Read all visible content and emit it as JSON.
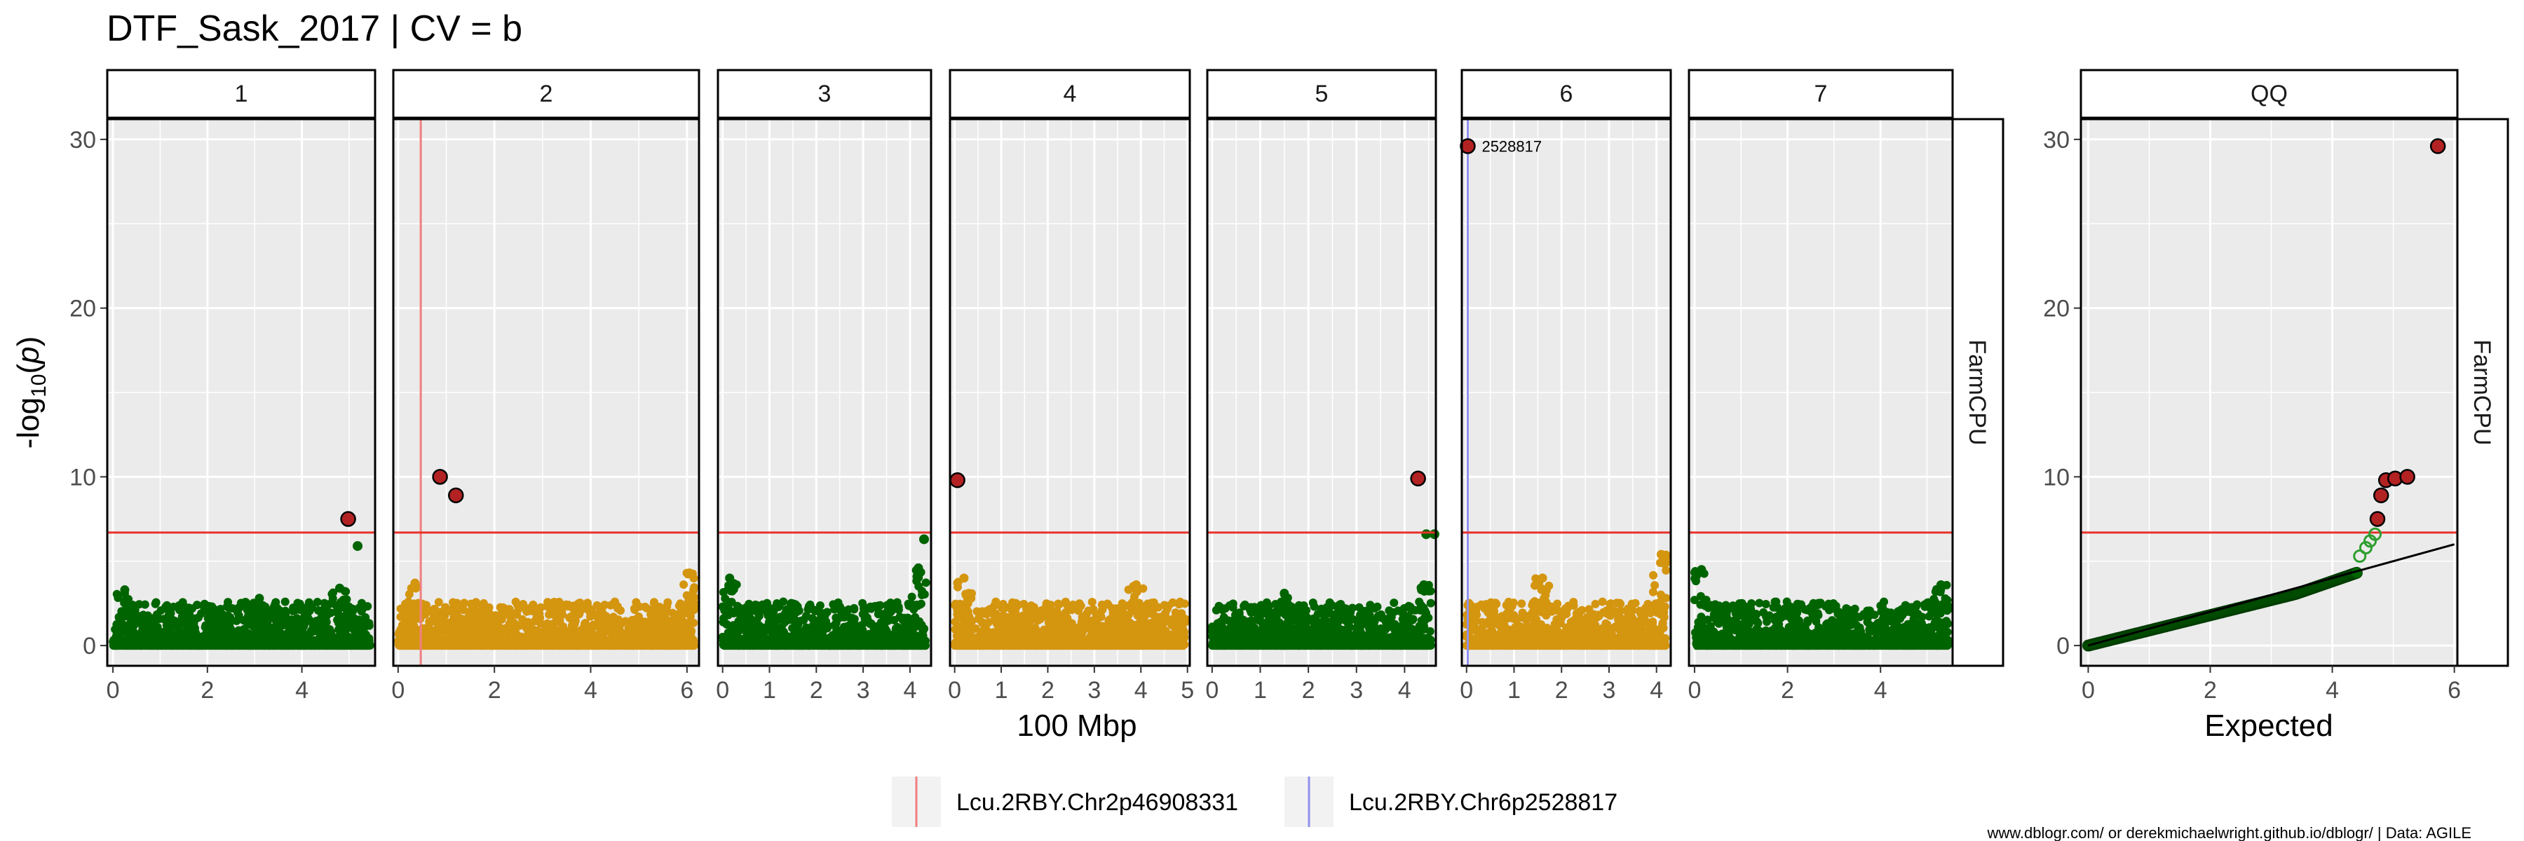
{
  "title": "DTF_Sask_2017 | CV = b",
  "footer": "www.dblogr.com/ or derekmichaelwright.github.io/dblogr/ | Data: AGILE",
  "colors": {
    "green": "#006400",
    "gold": "#D4950F",
    "threshold": "#E8322B",
    "highlight": "#B32222",
    "chr2_marker": "#F08080",
    "chr6_marker": "#9090F0",
    "panel_bg": "#EBEBEB"
  },
  "chart_data": [
    {
      "type": "scatter",
      "title": "DTF_Sask_2017 | CV = b",
      "xlabel": "100 Mbp",
      "ylabel": "-log10(p)",
      "ylim": [
        -1.2,
        31.2
      ],
      "yticks": [
        0,
        10,
        20,
        30
      ],
      "threshold": 6.7,
      "strip_label": "FarmCPU",
      "facets": [
        {
          "label": "1",
          "color": "green",
          "xlim": [
            -0.12,
            5.55
          ],
          "xticks": [
            0,
            2,
            4
          ],
          "max_bp": 5.45,
          "noise_peaks": [
            {
              "x": 0.25,
              "y": 3.3
            },
            {
              "x": 3.1,
              "y": 2.8
            },
            {
              "x": 4.8,
              "y": 3.4
            }
          ],
          "points": [
            {
              "x": 5.18,
              "y": 5.9
            }
          ],
          "sig_points": [
            {
              "x": 4.98,
              "y": 7.5
            }
          ]
        },
        {
          "label": "2",
          "color": "gold",
          "xlim": [
            -0.1,
            6.25
          ],
          "xticks": [
            0,
            2,
            4,
            6
          ],
          "max_bp": 6.15,
          "noise_peaks": [
            {
              "x": 0.35,
              "y": 3.7
            },
            {
              "x": 6.05,
              "y": 4.3
            }
          ],
          "points": [],
          "sig_points": [
            {
              "x": 0.87,
              "y": 10.0
            },
            {
              "x": 1.2,
              "y": 8.9
            }
          ],
          "vline": {
            "x": 0.47,
            "color": "chr2_marker"
          }
        },
        {
          "label": "3",
          "color": "green",
          "xlim": [
            -0.1,
            4.45
          ],
          "xticks": [
            0,
            1,
            2,
            3,
            4
          ],
          "max_bp": 4.35,
          "noise_peaks": [
            {
              "x": 0.15,
              "y": 4.0
            },
            {
              "x": 4.18,
              "y": 4.6
            }
          ],
          "points": [
            {
              "x": 4.3,
              "y": 6.3
            }
          ],
          "sig_points": []
        },
        {
          "label": "4",
          "color": "gold",
          "xlim": [
            -0.1,
            5.05
          ],
          "xticks": [
            0,
            1,
            2,
            3,
            4,
            5
          ],
          "max_bp": 4.95,
          "noise_peaks": [
            {
              "x": 0.2,
              "y": 4.0
            },
            {
              "x": 3.9,
              "y": 3.6
            }
          ],
          "points": [],
          "sig_points": [
            {
              "x": 0.06,
              "y": 9.8
            }
          ]
        },
        {
          "label": "5",
          "color": "green",
          "xlim": [
            -0.1,
            4.65
          ],
          "xticks": [
            0,
            1,
            2,
            3,
            4
          ],
          "max_bp": 4.55,
          "noise_peaks": [
            {
              "x": 1.5,
              "y": 3.1
            },
            {
              "x": 4.4,
              "y": 3.6
            }
          ],
          "points": [
            {
              "x": 4.45,
              "y": 6.6
            },
            {
              "x": 4.62,
              "y": 6.6
            }
          ],
          "sig_points": [
            {
              "x": 4.28,
              "y": 9.9
            }
          ]
        },
        {
          "label": "6",
          "color": "gold",
          "xlim": [
            -0.1,
            4.3
          ],
          "xticks": [
            0,
            1,
            2,
            3,
            4
          ],
          "max_bp": 4.2,
          "noise_peaks": [
            {
              "x": 1.6,
              "y": 4.0
            },
            {
              "x": 4.1,
              "y": 5.4
            }
          ],
          "points": [],
          "sig_points": [
            {
              "x": 0.025,
              "y": 29.6,
              "label": "2528817"
            }
          ],
          "vline": {
            "x": 0.025,
            "color": "chr6_marker"
          }
        },
        {
          "label": "7",
          "color": "green",
          "xlim": [
            -0.12,
            5.55
          ],
          "xticks": [
            0,
            2,
            4
          ],
          "max_bp": 5.45,
          "noise_peaks": [
            {
              "x": 0.15,
              "y": 4.5
            },
            {
              "x": 5.3,
              "y": 3.6
            }
          ],
          "points": [],
          "sig_points": []
        }
      ]
    },
    {
      "type": "scatter",
      "title": "QQ",
      "xlabel": "Expected",
      "xlim": [
        -0.12,
        6.05
      ],
      "xticks": [
        0,
        2,
        4,
        6
      ],
      "ylim": [
        -1.2,
        31.2
      ],
      "yticks": [
        0,
        10,
        20,
        30
      ],
      "threshold": 6.7,
      "strip_label": "FarmCPU",
      "line": [
        {
          "x": 0,
          "y": 0
        },
        {
          "x": 6,
          "y": 6
        }
      ],
      "hollow_points": [
        {
          "x": 4.45,
          "y": 5.3
        },
        {
          "x": 4.55,
          "y": 5.8
        },
        {
          "x": 4.62,
          "y": 6.2
        },
        {
          "x": 4.7,
          "y": 6.6
        }
      ],
      "sig_points": [
        {
          "x": 4.74,
          "y": 7.5
        },
        {
          "x": 4.8,
          "y": 8.9
        },
        {
          "x": 4.88,
          "y": 9.8
        },
        {
          "x": 5.03,
          "y": 9.9
        },
        {
          "x": 5.23,
          "y": 10.0
        },
        {
          "x": 5.73,
          "y": 29.6
        }
      ]
    }
  ],
  "legend": {
    "items": [
      {
        "label": "Lcu.2RBY.Chr2p46908331",
        "color": "chr2_marker"
      },
      {
        "label": "Lcu.2RBY.Chr6p2528817",
        "color": "chr6_marker"
      }
    ]
  }
}
